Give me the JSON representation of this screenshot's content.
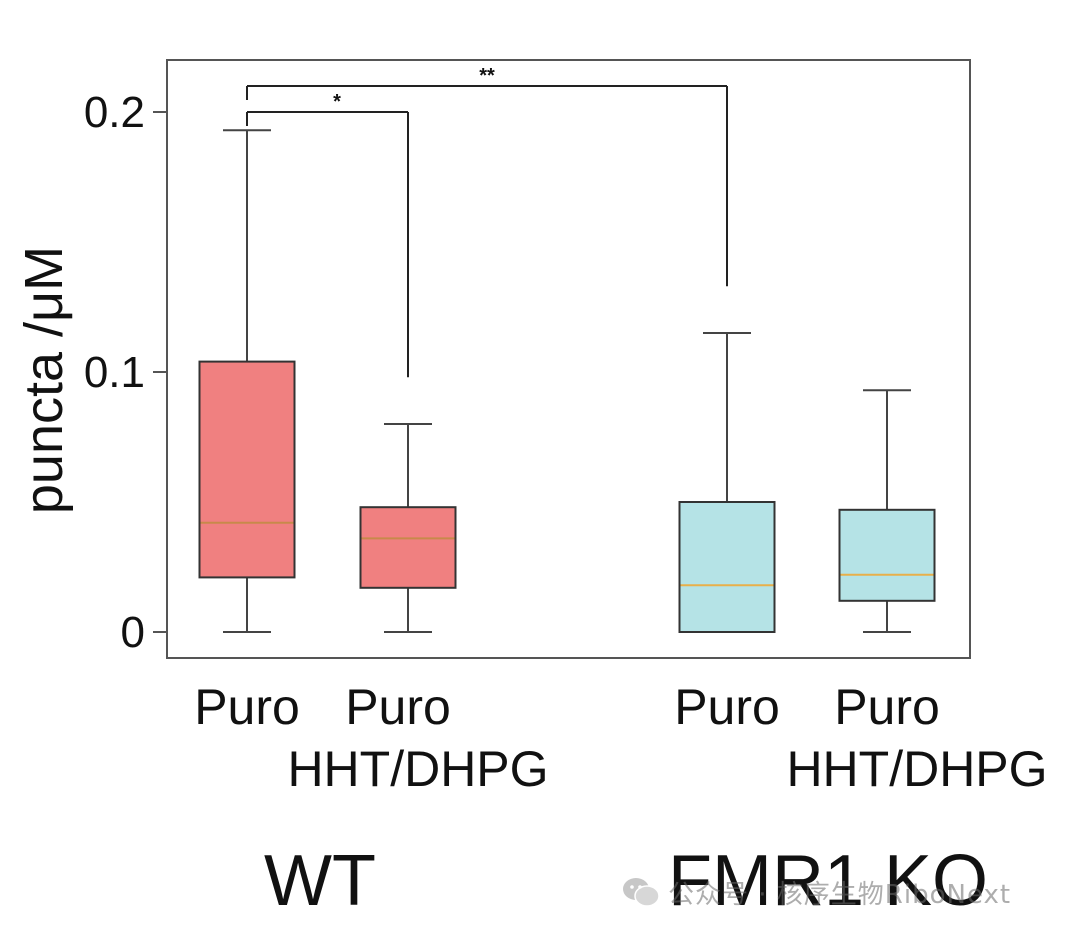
{
  "chart_data": {
    "type": "box",
    "ylabel": "puncta /μM",
    "ylim": [
      -0.01,
      0.22
    ],
    "yticks": [
      0,
      0.1,
      0.2
    ],
    "ytick_labels": [
      "0",
      "0.1",
      "0.2"
    ],
    "grid": false,
    "boxes": [
      {
        "category": "Puro",
        "group": "WT",
        "whisker_low": 0.0,
        "q1": 0.021,
        "median": 0.042,
        "q3": 0.104,
        "whisker_high": 0.193,
        "color": "#f08080",
        "median_color": "#c8894a"
      },
      {
        "category": "Puro HHT/DHPG",
        "group": "WT",
        "whisker_low": 0.0,
        "q1": 0.017,
        "median": 0.036,
        "q3": 0.048,
        "whisker_high": 0.08,
        "color": "#f08080",
        "median_color": "#c8894a"
      },
      {
        "category": "Puro",
        "group": "FMR1 KO",
        "whisker_low": 0.0,
        "q1": 0.0,
        "median": 0.018,
        "q3": 0.05,
        "whisker_high": 0.115,
        "color": "#b5e3e6",
        "median_color": "#e8b04a"
      },
      {
        "category": "Puro HHT/DHPG",
        "group": "FMR1 KO",
        "whisker_low": 0.0,
        "q1": 0.012,
        "median": 0.022,
        "q3": 0.047,
        "whisker_high": 0.093,
        "color": "#b5e3e6",
        "median_color": "#e8b04a"
      }
    ],
    "category_labels": [
      {
        "line1": "Puro",
        "line2": ""
      },
      {
        "line1": "Puro",
        "line2": "HHT/DHPG"
      },
      {
        "line1": "Puro",
        "line2": ""
      },
      {
        "line1": "Puro",
        "line2": "HHT/DHPG"
      }
    ],
    "groups": [
      {
        "label": "WT"
      },
      {
        "label": "FMR1 KO"
      }
    ],
    "significance": [
      {
        "from": 0,
        "to": 1,
        "label": "*",
        "y": 0.2,
        "drop_to": 0.098
      },
      {
        "from": 0,
        "to": 2,
        "label": "**",
        "y": 0.21,
        "drop_to": 0.133
      }
    ]
  },
  "watermark": {
    "text": "公众号 · 核序生物RiboNext"
  }
}
